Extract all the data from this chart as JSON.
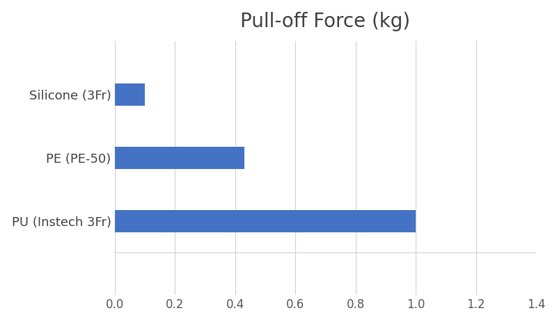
{
  "title": "Pull-off Force (kg)",
  "categories": [
    "PU (Instech 3Fr)",
    "PE (PE-50)",
    "Silicone (3Fr)"
  ],
  "values": [
    1.0,
    0.43,
    0.1
  ],
  "bar_color": "#4472C4",
  "xlim": [
    0,
    1.4
  ],
  "xticks": [
    0.0,
    0.2,
    0.4,
    0.6,
    0.8,
    1.0,
    1.2,
    1.4
  ],
  "title_fontsize": 20,
  "label_fontsize": 13,
  "tick_fontsize": 12,
  "background_color": "#ffffff",
  "grid_color": "#d0d0d0",
  "bar_height": 0.35
}
